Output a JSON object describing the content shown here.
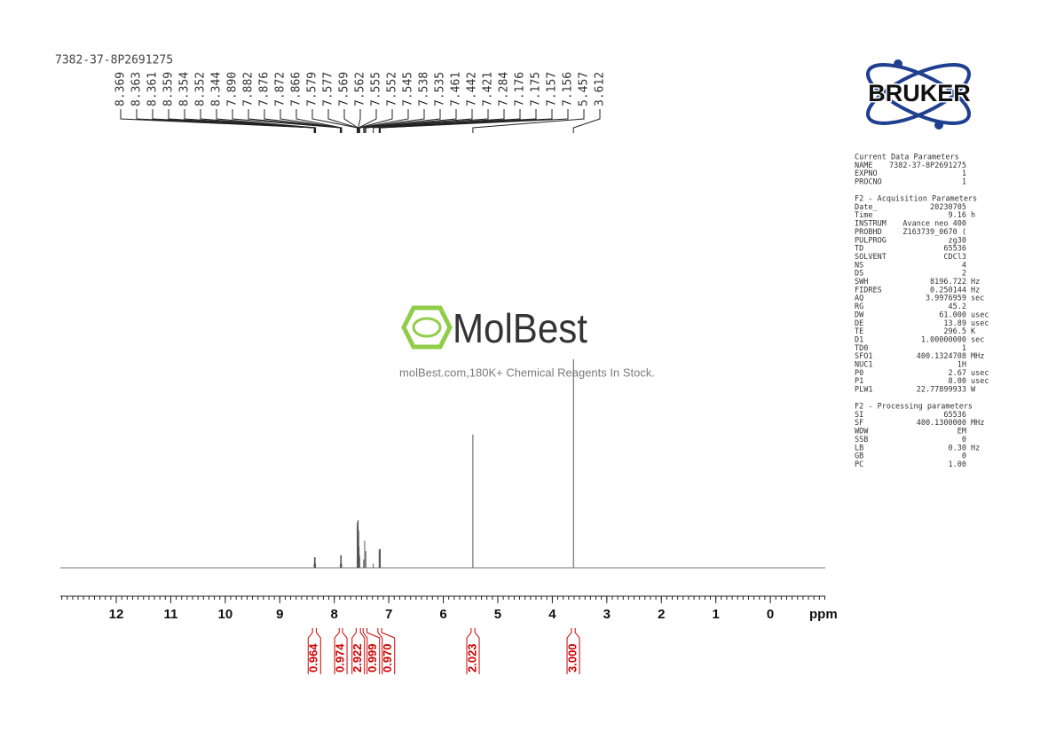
{
  "chart_data": {
    "type": "spectrum",
    "title": "7382-37-8P2691275",
    "xlabel": "ppm",
    "xlim": [
      13,
      -1
    ],
    "xticks": [
      12,
      11,
      10,
      9,
      8,
      7,
      6,
      5,
      4,
      3,
      2,
      1,
      0
    ],
    "xminor": 0.1,
    "ylim": [
      0,
      100
    ],
    "color": "#555555",
    "x": [
      8.369,
      8.363,
      8.361,
      8.359,
      8.354,
      8.352,
      8.344,
      7.89,
      7.882,
      7.876,
      7.872,
      7.866,
      7.579,
      7.577,
      7.569,
      7.562,
      7.555,
      7.552,
      7.545,
      7.538,
      7.535,
      7.461,
      7.442,
      7.421,
      7.284,
      7.176,
      7.175,
      7.157,
      7.156,
      5.457,
      3.612
    ],
    "x_labels": [
      "8.369",
      "8.363",
      "8.361",
      "8.359",
      "8.354",
      "8.352",
      "8.344",
      "7.890",
      "7.882",
      "7.876",
      "7.872",
      "7.866",
      "7.579",
      "7.577",
      "7.569",
      "7.562",
      "7.555",
      "7.552",
      "7.545",
      "7.538",
      "7.535",
      "7.461",
      "7.442",
      "7.421",
      "7.284",
      "7.176",
      "7.175",
      "7.157",
      "7.156",
      "5.457",
      "3.612"
    ],
    "values": [
      2,
      5,
      5,
      4,
      5,
      5,
      2,
      2,
      6,
      5,
      6,
      2,
      20,
      22,
      16,
      23,
      15,
      18,
      10,
      6,
      5,
      4,
      13,
      8,
      2,
      9,
      8,
      9,
      8,
      64,
      100
    ],
    "integrals": {
      "color": "#cc0000",
      "ranges": [
        [
          8.4,
          8.33
        ],
        [
          7.91,
          7.85
        ],
        [
          7.6,
          7.52
        ],
        [
          7.47,
          7.4
        ],
        [
          7.2,
          7.13
        ],
        [
          5.49,
          5.42
        ],
        [
          3.65,
          3.58
        ]
      ],
      "values": [
        0.964,
        0.974,
        2.922,
        0.999,
        0.97,
        2.023,
        3
      ],
      "value_labels": [
        "0.964",
        "0.974",
        "2.922",
        "0.999",
        "0.970",
        "2.023",
        "3.000"
      ]
    }
  },
  "logo": {
    "brand": "BRUKER"
  },
  "watermark": {
    "name": "MolBest",
    "tagline": "molBest.com,180K+ Chemical Reagents In Stock."
  },
  "parameters": [
    {
      "title": "Current Data Parameters",
      "rows": [
        [
          "NAME",
          "7382-37-8P2691275"
        ],
        [
          "EXPNO",
          "1"
        ],
        [
          "PROCNO",
          "1"
        ]
      ]
    },
    {
      "title": "F2 - Acquisition Parameters",
      "rows": [
        [
          "Date_",
          "20230705"
        ],
        [
          "Time",
          "9.16",
          "h"
        ],
        [
          "INSTRUM",
          "Avance neo 400"
        ],
        [
          "PROBHD",
          "Z163739_0670 ("
        ],
        [
          "PULPROG",
          "zg30"
        ],
        [
          "TD",
          "65536"
        ],
        [
          "SOLVENT",
          "CDCl3"
        ],
        [
          "NS",
          "4"
        ],
        [
          "DS",
          "2"
        ],
        [
          "SWH",
          "8196.722",
          "Hz"
        ],
        [
          "FIDRES",
          "0.250144",
          "Hz"
        ],
        [
          "AQ",
          "3.9976959",
          "sec"
        ],
        [
          "RG",
          "45.2"
        ],
        [
          "DW",
          "61.000",
          "usec"
        ],
        [
          "DE",
          "13.89",
          "usec"
        ],
        [
          "TE",
          "296.5",
          "K"
        ],
        [
          "D1",
          "1.00000000",
          "sec"
        ],
        [
          "TD0",
          "1"
        ],
        [
          "SFO1",
          "400.1324708",
          "MHz"
        ],
        [
          "NUC1",
          "1H"
        ],
        [
          "P0",
          "2.67",
          "usec"
        ],
        [
          "P1",
          "8.00",
          "usec"
        ],
        [
          "PLW1",
          "22.77899933",
          "W"
        ]
      ]
    },
    {
      "title": "F2 - Processing parameters",
      "rows": [
        [
          "SI",
          "65536"
        ],
        [
          "SF",
          "400.1300000",
          "MHz"
        ],
        [
          "WDW",
          "EM"
        ],
        [
          "SSB",
          "0"
        ],
        [
          "LB",
          "0.30",
          "Hz"
        ],
        [
          "GB",
          "0"
        ],
        [
          "PC",
          "1.00"
        ]
      ]
    }
  ]
}
